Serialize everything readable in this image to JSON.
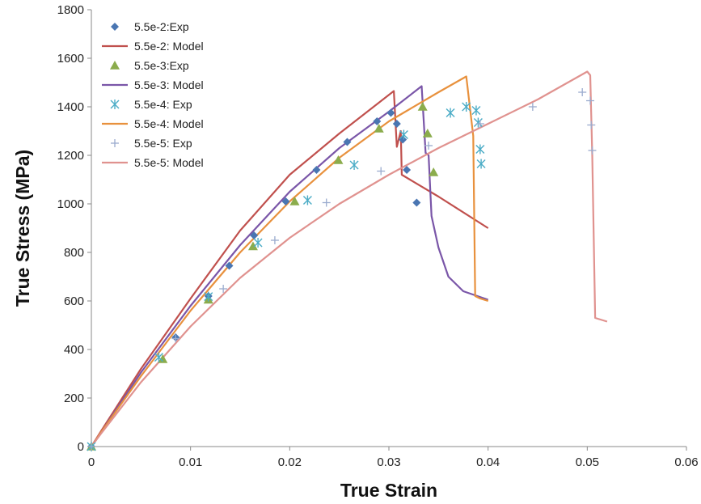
{
  "chart_data": {
    "type": "scatter",
    "title": "",
    "xlabel": "True Strain",
    "ylabel": "True Stress (MPa)",
    "xlim": [
      0,
      0.06
    ],
    "ylim": [
      0,
      1800
    ],
    "xticks": [
      "0",
      "0.01",
      "0.02",
      "0.03",
      "0.04",
      "0.05",
      "0.06"
    ],
    "yticks": [
      "0",
      "200",
      "400",
      "600",
      "800",
      "1000",
      "1200",
      "1400",
      "1600",
      "1800"
    ],
    "grid": false,
    "legend_position": "top-left",
    "series": [
      {
        "name": "5.5e-2:Exp",
        "kind": "markers",
        "marker": "diamond",
        "color": "#4a76b2",
        "points": [
          [
            0,
            0
          ],
          [
            0.0085,
            450
          ],
          [
            0.0118,
            620
          ],
          [
            0.0139,
            745
          ],
          [
            0.0164,
            870
          ],
          [
            0.0196,
            1010
          ],
          [
            0.0227,
            1140
          ],
          [
            0.0258,
            1255
          ],
          [
            0.0288,
            1340
          ],
          [
            0.0302,
            1375
          ],
          [
            0.0308,
            1330
          ],
          [
            0.0314,
            1265
          ],
          [
            0.0318,
            1140
          ],
          [
            0.0328,
            1005
          ]
        ]
      },
      {
        "name": "5.5e-2: Model",
        "kind": "line",
        "color": "#c0504d",
        "points": [
          [
            0,
            0
          ],
          [
            0.001,
            65
          ],
          [
            0.005,
            320
          ],
          [
            0.01,
            610
          ],
          [
            0.015,
            890
          ],
          [
            0.02,
            1120
          ],
          [
            0.025,
            1290
          ],
          [
            0.0305,
            1465
          ],
          [
            0.0308,
            1235
          ],
          [
            0.0312,
            1300
          ],
          [
            0.0313,
            1120
          ],
          [
            0.035,
            1030
          ],
          [
            0.04,
            900
          ]
        ]
      },
      {
        "name": "5.5e-3:Exp",
        "kind": "markers",
        "marker": "triangle",
        "color": "#8bac4c",
        "points": [
          [
            0,
            0
          ],
          [
            0.0072,
            360
          ],
          [
            0.0118,
            605
          ],
          [
            0.0163,
            825
          ],
          [
            0.0205,
            1010
          ],
          [
            0.0249,
            1180
          ],
          [
            0.029,
            1310
          ],
          [
            0.0334,
            1400
          ],
          [
            0.0339,
            1290
          ],
          [
            0.0345,
            1130
          ]
        ]
      },
      {
        "name": "5.5e-3: Model",
        "kind": "line",
        "color": "#7a56a8",
        "points": [
          [
            0,
            0
          ],
          [
            0.001,
            60
          ],
          [
            0.005,
            305
          ],
          [
            0.01,
            580
          ],
          [
            0.015,
            830
          ],
          [
            0.02,
            1050
          ],
          [
            0.025,
            1230
          ],
          [
            0.03,
            1380
          ],
          [
            0.0333,
            1485
          ],
          [
            0.0337,
            1210
          ],
          [
            0.034,
            1200
          ],
          [
            0.0343,
            950
          ],
          [
            0.035,
            820
          ],
          [
            0.036,
            700
          ],
          [
            0.0375,
            640
          ],
          [
            0.04,
            605
          ]
        ]
      },
      {
        "name": "5.5e-4: Exp",
        "kind": "markers",
        "marker": "asterisk",
        "color": "#4bacc6",
        "points": [
          [
            0,
            0
          ],
          [
            0.0068,
            368
          ],
          [
            0.0118,
            618
          ],
          [
            0.0168,
            840
          ],
          [
            0.0218,
            1015
          ],
          [
            0.0265,
            1160
          ],
          [
            0.0315,
            1285
          ],
          [
            0.0362,
            1375
          ],
          [
            0.0378,
            1400
          ],
          [
            0.0388,
            1385
          ],
          [
            0.039,
            1335
          ],
          [
            0.0392,
            1225
          ],
          [
            0.0393,
            1165
          ]
        ]
      },
      {
        "name": "5.5e-4: Model",
        "kind": "line",
        "color": "#e8913d",
        "points": [
          [
            0,
            0
          ],
          [
            0.001,
            60
          ],
          [
            0.005,
            290
          ],
          [
            0.01,
            560
          ],
          [
            0.015,
            800
          ],
          [
            0.02,
            1010
          ],
          [
            0.025,
            1190
          ],
          [
            0.03,
            1340
          ],
          [
            0.035,
            1460
          ],
          [
            0.0378,
            1525
          ],
          [
            0.0385,
            1280
          ],
          [
            0.0387,
            620
          ],
          [
            0.0392,
            610
          ],
          [
            0.04,
            600
          ]
        ]
      },
      {
        "name": "5.5e-5: Exp",
        "kind": "markers",
        "marker": "plus",
        "color": "#9aabce",
        "points": [
          [
            0,
            0
          ],
          [
            0.0085,
            445
          ],
          [
            0.0133,
            650
          ],
          [
            0.0185,
            850
          ],
          [
            0.0237,
            1005
          ],
          [
            0.0292,
            1135
          ],
          [
            0.034,
            1240
          ],
          [
            0.0392,
            1330
          ],
          [
            0.0445,
            1400
          ],
          [
            0.0495,
            1460
          ],
          [
            0.0503,
            1425
          ],
          [
            0.0504,
            1325
          ],
          [
            0.0505,
            1220
          ]
        ]
      },
      {
        "name": "5.5e-5: Model",
        "kind": "line",
        "color": "#e0928f",
        "points": [
          [
            0,
            0
          ],
          [
            0.001,
            55
          ],
          [
            0.005,
            265
          ],
          [
            0.01,
            495
          ],
          [
            0.015,
            695
          ],
          [
            0.02,
            860
          ],
          [
            0.025,
            1000
          ],
          [
            0.03,
            1120
          ],
          [
            0.035,
            1230
          ],
          [
            0.04,
            1330
          ],
          [
            0.045,
            1430
          ],
          [
            0.05,
            1545
          ],
          [
            0.0503,
            1530
          ],
          [
            0.0505,
            1200
          ],
          [
            0.0508,
            530
          ],
          [
            0.052,
            515
          ]
        ]
      }
    ]
  }
}
